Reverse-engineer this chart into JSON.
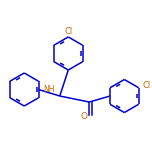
{
  "background_color": "#ffffff",
  "bond_color": "#0000cc",
  "cl_color": "#cc6600",
  "o_color": "#cc6600",
  "nh_color": "#cc6600",
  "line_width": 1.1,
  "figsize": [
    1.52,
    1.52
  ],
  "dpi": 100,
  "xlim": [
    -1.55,
    1.45
  ],
  "ylim": [
    -0.75,
    1.35
  ]
}
